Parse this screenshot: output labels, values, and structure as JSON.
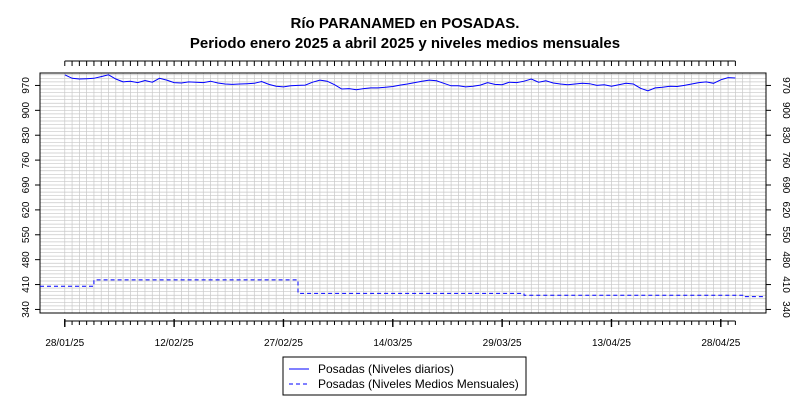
{
  "chart_data": {
    "type": "line",
    "title": "Río PARANAMED en POSADAS.",
    "subtitle": "Periodo enero 2025 a abril 2025 y niveles medios mensuales",
    "y_ticks": [
      340,
      410,
      480,
      550,
      620,
      690,
      760,
      830,
      900,
      970
    ],
    "ylim": [
      330,
      1005
    ],
    "x_tick_labels": [
      "28/01/25",
      "12/02/25",
      "27/02/25",
      "14/03/25",
      "29/03/25",
      "13/04/25",
      "28/04/25"
    ],
    "x_tick_days": [
      0,
      15,
      30,
      45,
      60,
      75,
      90
    ],
    "xlim": [
      -3.4,
      96.2
    ],
    "grid": true,
    "legend_position": "bottom-center",
    "colors": {
      "series": "#0000ff",
      "grid": "#c8c8c8",
      "axis": "#000000"
    },
    "series": [
      {
        "name": "Posadas (Niveles diarios)",
        "style": "solid",
        "x_days": [
          0,
          1,
          2,
          3,
          4,
          5,
          6,
          7,
          8,
          9,
          10,
          11,
          12,
          13,
          14,
          15,
          16,
          17,
          18,
          19,
          20,
          21,
          22,
          23,
          24,
          25,
          26,
          27,
          28,
          29,
          30,
          31,
          32,
          33,
          34,
          35,
          36,
          37,
          38,
          39,
          40,
          41,
          42,
          43,
          44,
          45,
          46,
          47,
          48,
          49,
          50,
          51,
          52,
          53,
          54,
          55,
          56,
          57,
          58,
          59,
          60,
          61,
          62,
          63,
          64,
          65,
          66,
          67,
          68,
          69,
          70,
          71,
          72,
          73,
          74,
          75,
          76,
          77,
          78,
          79,
          80,
          81,
          82,
          83,
          84,
          85,
          86,
          87,
          88,
          89,
          90,
          91,
          92
        ],
        "values": [
          1000,
          990,
          988,
          989,
          990,
          995,
          1000,
          988,
          980,
          982,
          978,
          984,
          979,
          990,
          985,
          978,
          977,
          980,
          979,
          978,
          982,
          977,
          974,
          973,
          974,
          975,
          976,
          981,
          973,
          968,
          966,
          969,
          970,
          971,
          979,
          985,
          982,
          972,
          960,
          961,
          958,
          961,
          963,
          963,
          965,
          967,
          971,
          974,
          978,
          982,
          985,
          983,
          976,
          969,
          969,
          966,
          968,
          971,
          978,
          973,
          972,
          979,
          978,
          982,
          988,
          979,
          983,
          977,
          974,
          972,
          974,
          976,
          975,
          970,
          972,
          968,
          972,
          976,
          974,
          962,
          955,
          963,
          965,
          968,
          967,
          970,
          974,
          978,
          980,
          976,
          986,
          992,
          991
        ]
      },
      {
        "name": "Posadas (Niveles Medios Mensuales)",
        "style": "dashed",
        "steps": [
          {
            "from_day": -3.4,
            "to_day": 4,
            "value": 405
          },
          {
            "from_day": 4,
            "to_day": 32,
            "value": 423
          },
          {
            "from_day": 32,
            "to_day": 63,
            "value": 385
          },
          {
            "from_day": 63,
            "to_day": 93,
            "value": 380
          },
          {
            "from_day": 93,
            "to_day": 96.2,
            "value": 376
          }
        ]
      }
    ]
  }
}
